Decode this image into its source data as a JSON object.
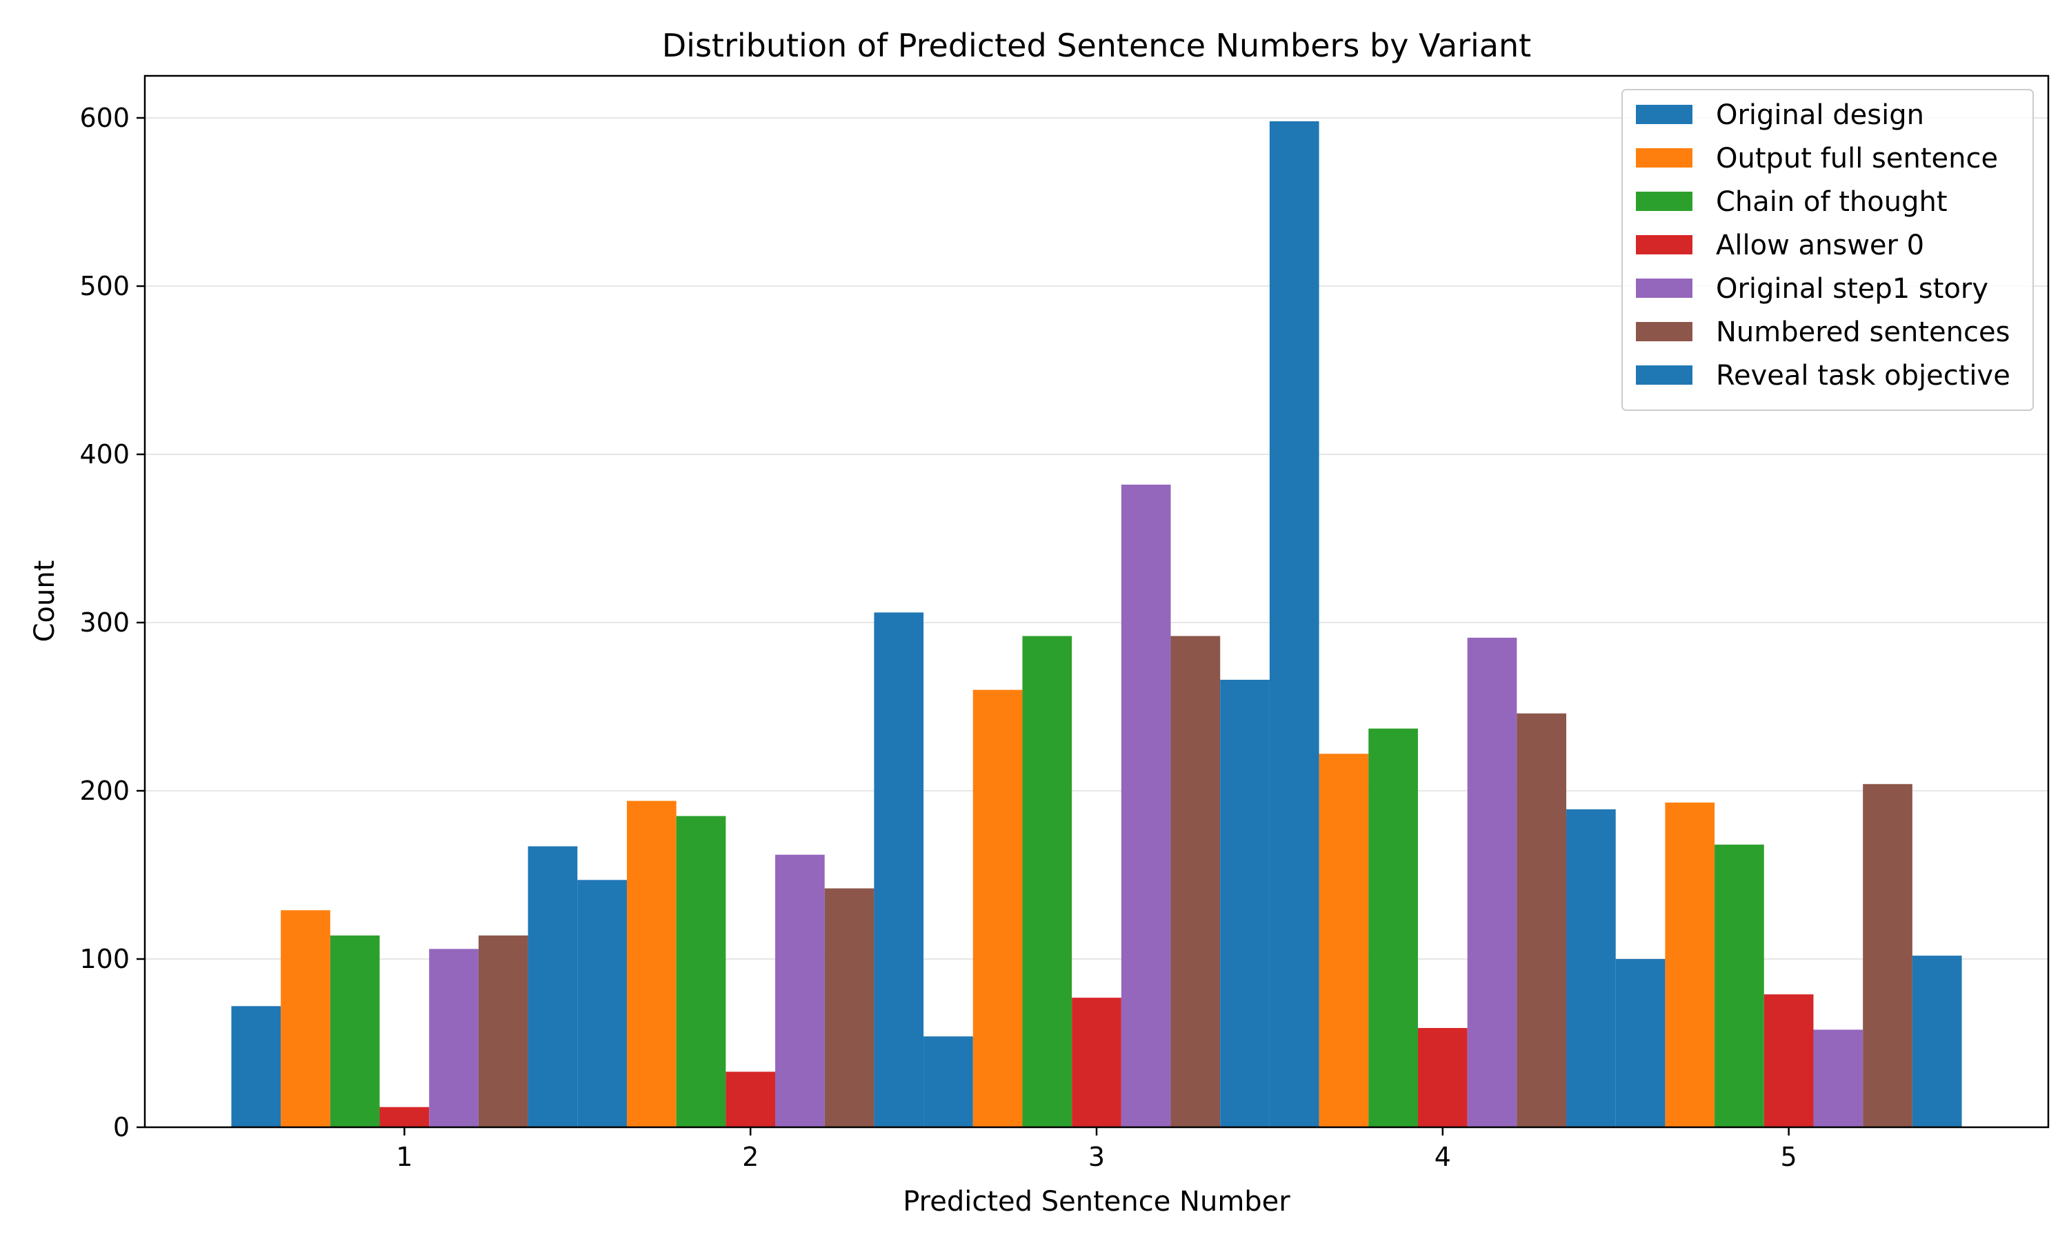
{
  "chart_data": {
    "type": "bar",
    "title": "Distribution of Predicted Sentence Numbers by Variant",
    "xlabel": "Predicted Sentence Number",
    "ylabel": "Count",
    "x_ticks": [
      "1",
      "2",
      "3",
      "4",
      "5"
    ],
    "y_ticks": [
      0,
      100,
      200,
      300,
      400,
      500,
      600
    ],
    "ylim": [
      0,
      625
    ],
    "grid": "horizontal",
    "legend_position": "top-right",
    "series": [
      {
        "name": "Original design",
        "color": "#1f77b4",
        "values": [
          72,
          147,
          54,
          598,
          100
        ]
      },
      {
        "name": "Output full sentence",
        "color": "#ff7f0e",
        "values": [
          129,
          194,
          260,
          222,
          193
        ]
      },
      {
        "name": "Chain of thought",
        "color": "#2ca02c",
        "values": [
          114,
          185,
          292,
          237,
          168
        ]
      },
      {
        "name": "Allow answer 0",
        "color": "#d62728",
        "values": [
          12,
          33,
          77,
          59,
          79
        ]
      },
      {
        "name": "Original step1 story",
        "color": "#9467bd",
        "values": [
          106,
          162,
          382,
          291,
          58
        ]
      },
      {
        "name": "Numbered sentences",
        "color": "#8c564b",
        "values": [
          114,
          142,
          292,
          246,
          204
        ]
      },
      {
        "name": "Reveal task objective",
        "color": "#1f77b4",
        "values": [
          167,
          306,
          266,
          189,
          102
        ]
      }
    ]
  }
}
